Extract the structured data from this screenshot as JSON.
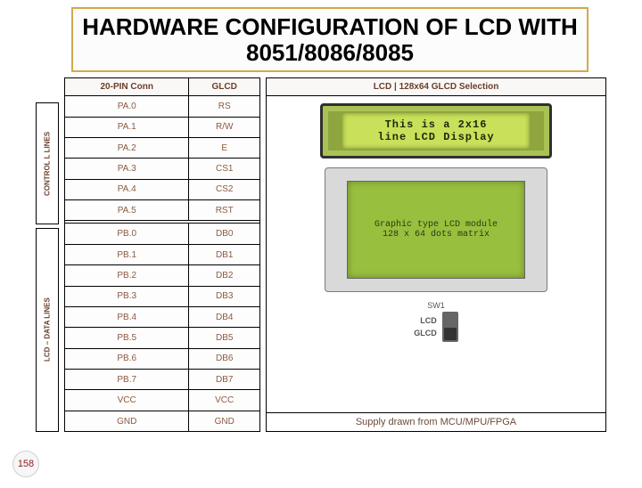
{
  "title": "HARDWARE CONFIGURATION OF LCD WITH 8051/8086/8085",
  "page_number": "158",
  "headers": {
    "pin": "20-PIN Conn",
    "glcd": "GLCD",
    "right": "LCD | 128x64 GLCD Selection"
  },
  "rotated": {
    "control": "CONTROL L LINES",
    "data": "LCD – DATA LINES"
  },
  "rows_control": [
    {
      "pin": "PA.0",
      "sig": "RS"
    },
    {
      "pin": "PA.1",
      "sig": "R/W"
    },
    {
      "pin": "PA.2",
      "sig": "E"
    },
    {
      "pin": "PA.3",
      "sig": "CS1"
    },
    {
      "pin": "PA.4",
      "sig": "CS2"
    },
    {
      "pin": "PA.5",
      "sig": "RST"
    }
  ],
  "rows_data": [
    {
      "pin": "PB.0",
      "sig": "DB0"
    },
    {
      "pin": "PB.1",
      "sig": "DB1"
    },
    {
      "pin": "PB.2",
      "sig": "DB2"
    },
    {
      "pin": "PB.3",
      "sig": "DB3"
    },
    {
      "pin": "PB.4",
      "sig": "DB4"
    },
    {
      "pin": "PB.5",
      "sig": "DB5"
    },
    {
      "pin": "PB.6",
      "sig": "DB6"
    },
    {
      "pin": "PB.7",
      "sig": "DB7"
    },
    {
      "pin": "VCC",
      "sig": "VCC"
    },
    {
      "pin": "GND",
      "sig": "GND"
    }
  ],
  "lcd16x2": {
    "line1": "This is a 2x16",
    "line2": "line LCD Display"
  },
  "glcd_display": {
    "line1": "Graphic type LCD module",
    "line2": "128 x 64 dots matrix"
  },
  "switch": {
    "label": "SW1",
    "opt1": "LCD",
    "opt2": "GLCD"
  },
  "footer": "Supply drawn from MCU/MPU/FPGA",
  "colors": {
    "title_border": "#d4a84a",
    "text_accent": "#6a3e2a",
    "cell_text": "#8a5a42",
    "lcd_frame": "#303030",
    "lcd_body": "#8ea63d",
    "lcd_screen": "#c9e05a",
    "glcd_body": "#d9d9d9",
    "glcd_screen": "#99bf3f"
  }
}
